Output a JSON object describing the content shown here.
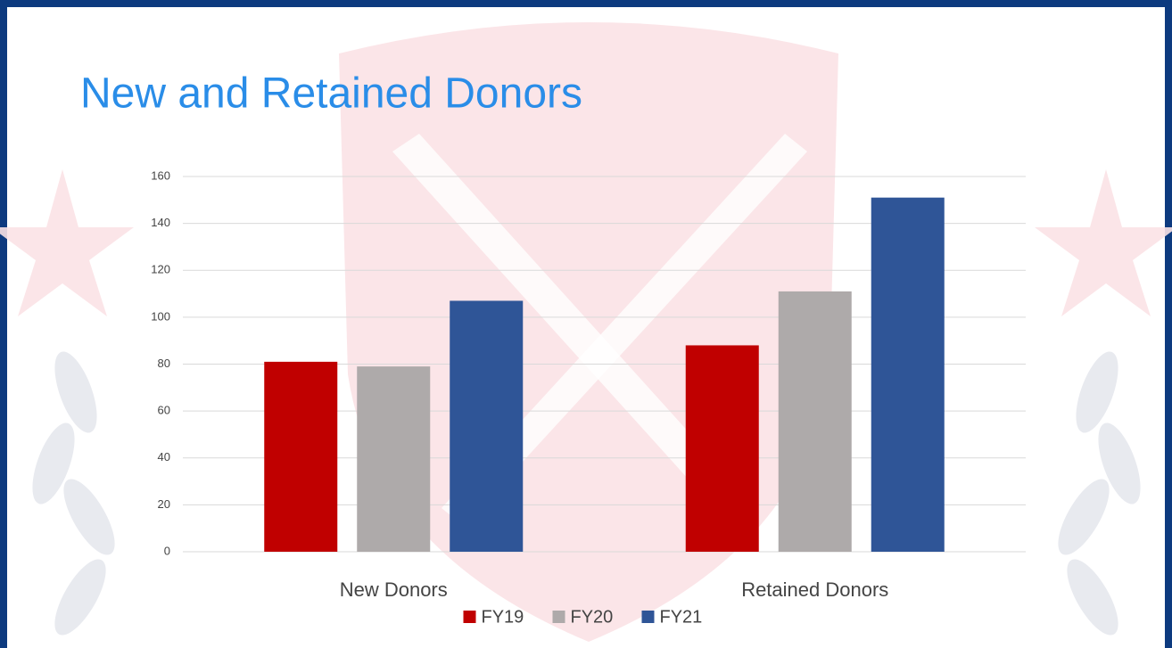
{
  "chart_data": {
    "type": "bar",
    "title": "New and Retained Donors",
    "categories": [
      "New Donors",
      "Retained Donors"
    ],
    "series": [
      {
        "name": "FY19",
        "color": "#c00000",
        "values": [
          81,
          88
        ]
      },
      {
        "name": "FY20",
        "color": "#aeaaaa",
        "values": [
          79,
          111
        ]
      },
      {
        "name": "FY21",
        "color": "#2f5597",
        "values": [
          107,
          151
        ]
      }
    ],
    "ylim": [
      0,
      160
    ],
    "yticks": [
      0,
      20,
      40,
      60,
      80,
      100,
      120,
      140,
      160
    ],
    "grid": true,
    "legend": "bottom"
  }
}
